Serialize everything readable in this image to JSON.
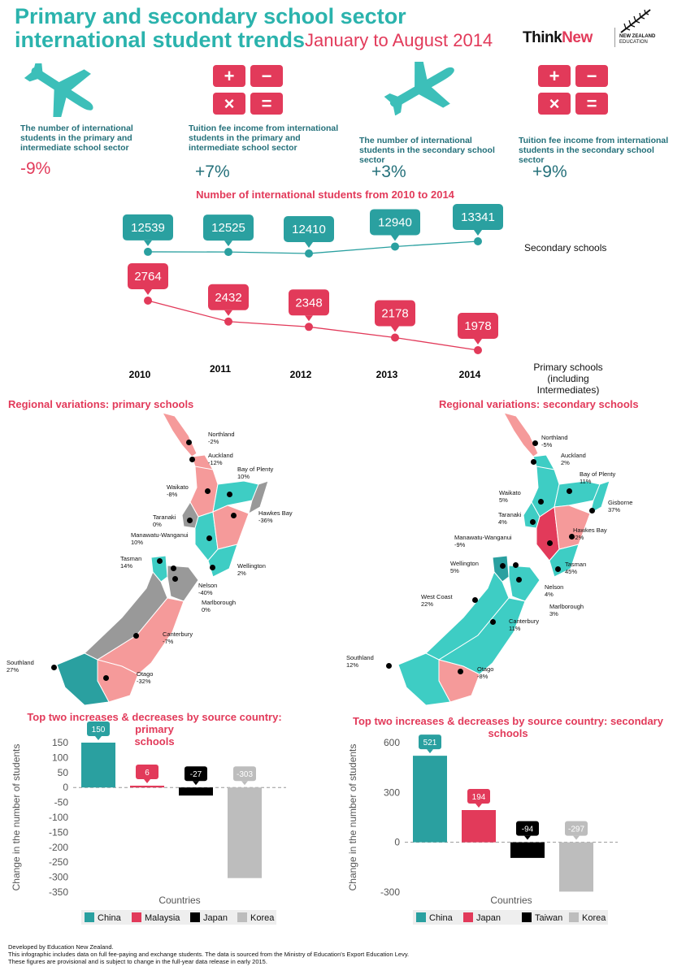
{
  "header": {
    "title_line1": "Primary and secondary school sector",
    "title_line2": "international student trends",
    "subtitle": "January to August 2014",
    "brand_think": "Think",
    "brand_new": "New",
    "brand_nz_line1": "NEW ZEALAND",
    "brand_nz_line2": "EDUCATION"
  },
  "stats": [
    {
      "line1": "The number of international",
      "line2": "students in the primary and",
      "line3": "intermediate school sector",
      "value": "-9%",
      "icon": "airplane-icon"
    },
    {
      "line1": "Tuition fee income from international",
      "line2": "students in the primary  and",
      "line3": "intermediate school sector",
      "value": "+7%",
      "icon": "calculator-icon"
    },
    {
      "line1": "The number of international",
      "line2": "students in the secondary school",
      "line3": "sector",
      "value": "+3%",
      "icon": "airplane-icon"
    },
    {
      "line1": "Tuition fee income from international",
      "line2": "students in the secondary school",
      "line3": "sector",
      "value": "+9%",
      "icon": "calculator-icon"
    }
  ],
  "calc_keys": [
    "+",
    "−",
    "×",
    "="
  ],
  "chart_data": [
    {
      "type": "line",
      "title": "Number of international students from 2010 to 2014",
      "x": [
        "2010",
        "2011",
        "2012",
        "2013",
        "2014"
      ],
      "series": [
        {
          "name": "Secondary schools",
          "values": [
            12539,
            12525,
            12410,
            12940,
            13341
          ],
          "color": "#2aa0a0"
        },
        {
          "name": "Primary schools (including Intermediates)",
          "values": [
            2764,
            2432,
            2348,
            2178,
            1978
          ],
          "color": "#e23a5a"
        }
      ],
      "series_label_primary_line1": "Primary schools (including",
      "series_label_primary_line2": "Intermediates)"
    },
    {
      "type": "bar",
      "title_line1": "Top two increases & decreases by source country: primary",
      "title_line2": "schools",
      "categories": [
        "China",
        "Malaysia",
        "Japan",
        "Korea"
      ],
      "values": [
        150,
        6,
        -27,
        -303
      ],
      "colors": [
        "#2aa0a0",
        "#e23a5a",
        "#000000",
        "#bdbdbd"
      ],
      "xlabel": "Countries",
      "ylabel": "Change in the number of students",
      "ylim": [
        -350,
        150
      ],
      "yticks": [
        "150",
        "100",
        "50",
        "0",
        "-50",
        "-100",
        "-150",
        "-200",
        "-250",
        "-300",
        "-350"
      ]
    },
    {
      "type": "bar",
      "title_line1": "Top two increases & decreases by source country: secondary",
      "title_line2": "schools",
      "categories": [
        "China",
        "Japan",
        "Taiwan",
        "Korea"
      ],
      "values": [
        521,
        194,
        -94,
        -297
      ],
      "colors": [
        "#2aa0a0",
        "#e23a5a",
        "#000000",
        "#bdbdbd"
      ],
      "xlabel": "Countries",
      "ylabel": "Change in the number of students",
      "ylim": [
        -300,
        600
      ],
      "yticks": [
        "600",
        "300",
        "0",
        "-300"
      ]
    }
  ],
  "regional": {
    "primary_title": "Regional variations: primary schools",
    "secondary_title": "Regional variations: secondary schools",
    "primary": [
      {
        "name": "Northland",
        "value": "-2%"
      },
      {
        "name": "Auckland",
        "value": "-12%"
      },
      {
        "name": "Bay of Plenty",
        "value": "10%"
      },
      {
        "name": "Waikato",
        "value": "-8%"
      },
      {
        "name": "Taranaki",
        "value": "0%"
      },
      {
        "name": "Hawkes Bay",
        "value": "-36%"
      },
      {
        "name": "Manawatu-Wanganui",
        "value": "10%"
      },
      {
        "name": "Tasman",
        "value": "14%"
      },
      {
        "name": "Wellington",
        "value": "2%"
      },
      {
        "name": "Nelson",
        "value": "-40%"
      },
      {
        "name": "Marlborough",
        "value": "0%"
      },
      {
        "name": "Canterbury",
        "value": "-7%"
      },
      {
        "name": "Southland",
        "value": "27%"
      },
      {
        "name": "Otago",
        "value": "-32%"
      }
    ],
    "secondary": [
      {
        "name": "Northland",
        "value": "-5%"
      },
      {
        "name": "Auckland",
        "value": "2%"
      },
      {
        "name": "Bay of Plenty",
        "value": "11%"
      },
      {
        "name": "Waikato",
        "value": "5%"
      },
      {
        "name": "Gisborne",
        "value": "37%"
      },
      {
        "name": "Taranaki",
        "value": "4%"
      },
      {
        "name": "Hawkes Bay",
        "value": "-2%"
      },
      {
        "name": "Manawatu-Wanganui",
        "value": "-9%"
      },
      {
        "name": "Tasman",
        "value": "45%"
      },
      {
        "name": "Wellington",
        "value": "5%"
      },
      {
        "name": "Nelson",
        "value": "4%"
      },
      {
        "name": "West Coast",
        "value": "22%"
      },
      {
        "name": "Marlborough",
        "value": "3%"
      },
      {
        "name": "Canterbury",
        "value": "11%"
      },
      {
        "name": "Southland",
        "value": "12%"
      },
      {
        "name": "Otago",
        "value": "-8%"
      }
    ]
  },
  "footer": {
    "line1": "Developed by Education New Zealand.",
    "line2": "This infographic includes data on full fee-paying and exchange students. The data is sourced from the Ministry of Education's Export Education Levy.",
    "line3": "These figures are provisional and is subject to change in the full-year data release in early 2015."
  }
}
